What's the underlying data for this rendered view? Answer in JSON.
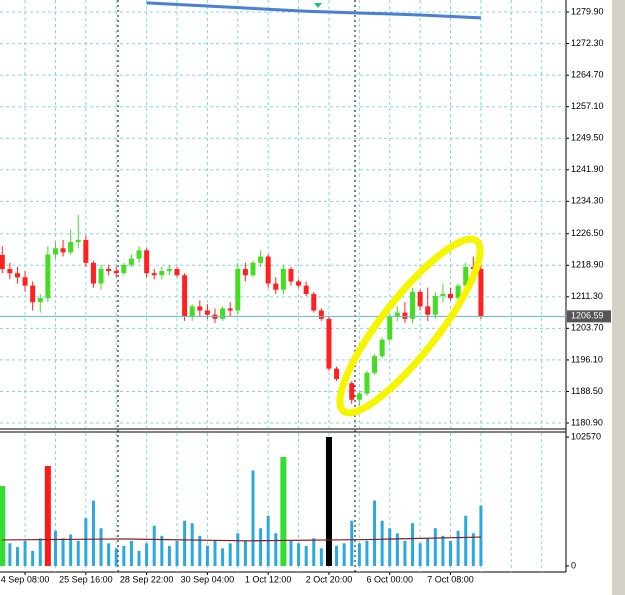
{
  "chart_data": [
    {
      "type": "candlestick",
      "ylim": [
        1179.7,
        1282.8
      ],
      "xlim": [
        -0.3,
        74.2
      ],
      "yticks": [
        {
          "value": 1279.9,
          "label": "1279.90"
        },
        {
          "value": 1272.3,
          "label": "1272.30"
        },
        {
          "value": 1264.7,
          "label": "1264.70"
        },
        {
          "value": 1257.1,
          "label": "1257.10"
        },
        {
          "value": 1249.5,
          "label": "1249.50"
        },
        {
          "value": 1241.9,
          "label": "1241.90"
        },
        {
          "value": 1234.3,
          "label": "1234.30"
        },
        {
          "value": 1226.5,
          "label": "1226.50"
        },
        {
          "value": 1218.9,
          "label": "1218.90"
        },
        {
          "value": 1211.3,
          "label": "1211.30"
        },
        {
          "value": 1203.7,
          "label": "1203.70"
        },
        {
          "value": 1196.1,
          "label": "1196.10"
        },
        {
          "value": 1188.5,
          "label": "1188.50"
        },
        {
          "value": 1180.9,
          "label": "1180.90"
        }
      ],
      "grid": true,
      "up_color": "#44dd22",
      "down_color": "#ff2020",
      "last_price": 1206.59,
      "open": [
        1221.4,
        1218.0,
        1217.0,
        1216.0,
        1214.0,
        1210.0,
        1211.0,
        1221.5,
        1223.0,
        1222.0,
        1224.5,
        1225.0,
        1219.5,
        1214.5,
        1218.0,
        1217.5,
        1217.0,
        1219.0,
        1220.5,
        1222.5,
        1217.0,
        1216.5,
        1217.5,
        1218.0,
        1216.5,
        1206.5,
        1209.0,
        1208.0,
        1207.0,
        1206.0,
        1208.5,
        1208.0,
        1218.0,
        1216.5,
        1219.5,
        1221.0,
        1214.5,
        1213.0,
        1218.0,
        1215.0,
        1214.0,
        1212.0,
        1208.0,
        1206.0,
        1194.0,
        1191.5,
        1190.5,
        1186.5,
        1188.0,
        1193.0,
        1197.0,
        1201.0,
        1206.5,
        1207.5,
        1206.0,
        1212.5,
        1209.0,
        1207.0,
        1211.5,
        1212.0,
        1211.0,
        1214.0,
        1218.5,
        1218.0
      ],
      "high": [
        1223.5,
        1219.5,
        1218.5,
        1217.5,
        1215.0,
        1212.0,
        1223.5,
        1224.5,
        1225.0,
        1227.5,
        1231.0,
        1226.0,
        1220.0,
        1219.0,
        1219.0,
        1218.5,
        1219.5,
        1221.5,
        1223.5,
        1223.0,
        1218.0,
        1218.5,
        1219.0,
        1218.5,
        1217.0,
        1209.5,
        1210.5,
        1209.5,
        1208.5,
        1209.0,
        1210.0,
        1219.5,
        1219.5,
        1220.0,
        1222.5,
        1221.5,
        1216.0,
        1219.0,
        1218.5,
        1215.5,
        1215.0,
        1212.5,
        1208.5,
        1206.5,
        1194.5,
        1192.0,
        1191.0,
        1188.5,
        1193.5,
        1197.5,
        1201.5,
        1207.0,
        1209.0,
        1210.0,
        1213.5,
        1213.0,
        1213.5,
        1212.5,
        1214.5,
        1213.5,
        1214.5,
        1219.5,
        1221.0,
        1220.0
      ],
      "low": [
        1217.0,
        1215.5,
        1214.5,
        1212.5,
        1208.0,
        1207.5,
        1210.0,
        1220.5,
        1221.0,
        1221.5,
        1223.0,
        1218.5,
        1213.5,
        1213.0,
        1216.5,
        1216.0,
        1216.5,
        1218.5,
        1219.5,
        1216.0,
        1215.5,
        1215.5,
        1216.5,
        1216.0,
        1205.5,
        1205.5,
        1206.5,
        1206.0,
        1205.0,
        1205.5,
        1206.5,
        1207.0,
        1215.0,
        1216.0,
        1218.5,
        1213.5,
        1212.0,
        1212.0,
        1214.0,
        1213.5,
        1211.5,
        1207.5,
        1205.5,
        1193.5,
        1191.0,
        1190.0,
        1185.5,
        1185.0,
        1187.5,
        1192.5,
        1196.5,
        1200.5,
        1205.5,
        1205.0,
        1205.0,
        1208.0,
        1205.5,
        1206.0,
        1210.0,
        1210.5,
        1210.5,
        1213.5,
        1216.5,
        1206.0
      ],
      "close": [
        1218.0,
        1217.0,
        1216.0,
        1214.0,
        1210.0,
        1211.0,
        1221.5,
        1223.0,
        1222.0,
        1224.5,
        1225.0,
        1219.5,
        1214.5,
        1218.0,
        1217.5,
        1217.0,
        1219.0,
        1220.5,
        1222.5,
        1217.0,
        1216.5,
        1217.5,
        1218.0,
        1216.5,
        1206.5,
        1209.0,
        1208.0,
        1207.0,
        1206.0,
        1208.5,
        1208.0,
        1218.0,
        1216.5,
        1219.5,
        1221.0,
        1214.5,
        1213.0,
        1218.0,
        1215.0,
        1214.0,
        1212.0,
        1208.0,
        1206.0,
        1194.0,
        1191.5,
        1190.5,
        1186.5,
        1188.0,
        1193.0,
        1197.0,
        1201.0,
        1206.5,
        1207.5,
        1206.0,
        1212.5,
        1209.0,
        1207.0,
        1211.5,
        1212.0,
        1211.0,
        1214.0,
        1218.5,
        1218.0,
        1206.59
      ],
      "ma_line": {
        "color": "#4a7fd6",
        "x": [
          19,
          40,
          55,
          63
        ],
        "values": [
          1282.1,
          1280.1,
          1279.2,
          1278.5
        ]
      }
    },
    {
      "type": "volume",
      "ylim": [
        -4800,
        105750
      ],
      "xlim": [
        -0.3,
        74.2
      ],
      "yticks": [
        102570,
        0
      ],
      "xticks": [
        {
          "value": 3,
          "label": "4 Sep 08:00"
        },
        {
          "value": 11,
          "label": "25 Sep 16:00"
        },
        {
          "value": 19,
          "label": "28 Sep 22:00"
        },
        {
          "value": 27,
          "label": "30 Sep 04:00"
        },
        {
          "value": 35,
          "label": "1 Oct 12:00"
        },
        {
          "value": 43,
          "label": "2 Oct 20:00"
        },
        {
          "value": 51,
          "label": "6 Oct 00:00"
        },
        {
          "value": 59,
          "label": "7 Oct 08:00"
        }
      ],
      "values": [
        63600,
        18000,
        15000,
        20000,
        12000,
        22000,
        79500,
        28000,
        22000,
        25000,
        20000,
        38000,
        52000,
        30000,
        18000,
        14000,
        16000,
        20000,
        12000,
        18000,
        32000,
        24000,
        16000,
        20000,
        36000,
        34000,
        24000,
        16000,
        20000,
        14000,
        18000,
        26000,
        20000,
        76000,
        30000,
        40000,
        26000,
        86700,
        20000,
        18000,
        16000,
        22000,
        14000,
        102570,
        16000,
        18000,
        36000,
        18000,
        20000,
        52000,
        36000,
        30000,
        26000,
        20000,
        34000,
        18000,
        22000,
        30000,
        24000,
        20000,
        28000,
        40000,
        26000,
        48000
      ],
      "colors": [
        "#33dd33",
        "#29a9e0",
        "#29a9e0",
        "#29a9e0",
        "#29a9e0",
        "#29a9e0",
        "#ff1a1a",
        "#29a9e0",
        "#29a9e0",
        "#29a9e0",
        "#29a9e0",
        "#29a9e0",
        "#29a9e0",
        "#29a9e0",
        "#29a9e0",
        "#29a9e0",
        "#29a9e0",
        "#29a9e0",
        "#29a9e0",
        "#29a9e0",
        "#29a9e0",
        "#29a9e0",
        "#29a9e0",
        "#29a9e0",
        "#29a9e0",
        "#29a9e0",
        "#29a9e0",
        "#29a9e0",
        "#29a9e0",
        "#29a9e0",
        "#29a9e0",
        "#29a9e0",
        "#29a9e0",
        "#29a9e0",
        "#29a9e0",
        "#29a9e0",
        "#29a9e0",
        "#33dd33",
        "#29a9e0",
        "#29a9e0",
        "#29a9e0",
        "#29a9e0",
        "#29a9e0",
        "#000000",
        "#29a9e0",
        "#29a9e0",
        "#29a9e0",
        "#29a9e0",
        "#29a9e0",
        "#29a9e0",
        "#29a9e0",
        "#29a9e0",
        "#29a9e0",
        "#29a9e0",
        "#29a9e0",
        "#29a9e0",
        "#29a9e0",
        "#29a9e0",
        "#29a9e0",
        "#29a9e0",
        "#29a9e0",
        "#29a9e0",
        "#29a9e0",
        "#29a9e0"
      ],
      "ma_line": {
        "color": "#8b1a1a",
        "x": [
          0,
          16,
          32,
          48,
          63
        ],
        "values": [
          20700,
          21500,
          20000,
          21000,
          23000
        ]
      }
    }
  ]
}
